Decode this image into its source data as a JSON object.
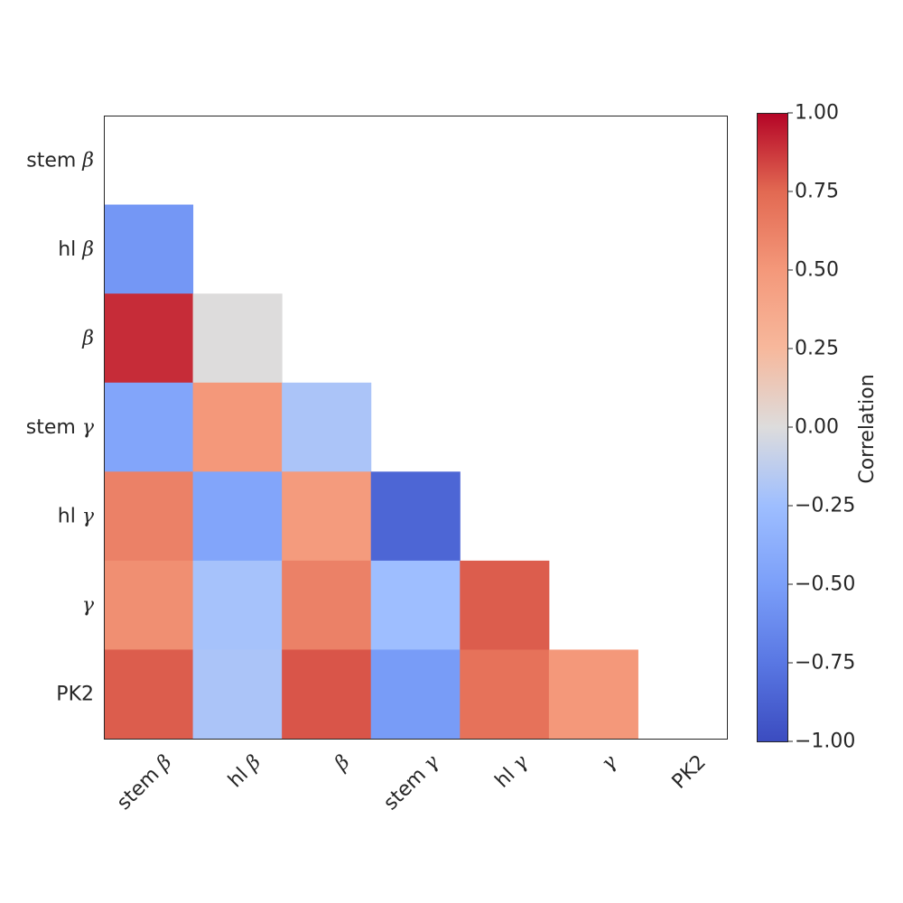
{
  "chart_data": {
    "type": "heatmap",
    "title": "",
    "xlabel": "",
    "ylabel": "",
    "labels": [
      {
        "text": "stem ",
        "sym": "β"
      },
      {
        "text": "hl ",
        "sym": "β"
      },
      {
        "text": "",
        "sym": "β"
      },
      {
        "text": "stem ",
        "sym": "γ"
      },
      {
        "text": "hl ",
        "sym": "γ"
      },
      {
        "text": "",
        "sym": "γ"
      },
      {
        "text": "PK2",
        "sym": ""
      }
    ],
    "mask": "upper-triangle-including-diagonal",
    "matrix": [
      [
        null,
        null,
        null,
        null,
        null,
        null,
        null
      ],
      [
        -0.55,
        null,
        null,
        null,
        null,
        null,
        null
      ],
      [
        0.9,
        0.0,
        null,
        null,
        null,
        null,
        null
      ],
      [
        -0.45,
        0.5,
        -0.2,
        null,
        null,
        null,
        null
      ],
      [
        0.62,
        -0.45,
        0.48,
        -0.85,
        null,
        null,
        null
      ],
      [
        0.55,
        -0.22,
        0.62,
        -0.25,
        0.78,
        null,
        null
      ],
      [
        0.78,
        -0.2,
        0.8,
        -0.52,
        0.7,
        0.5,
        null
      ]
    ],
    "colormap": "coolwarm",
    "vmin": -1.0,
    "vmax": 1.0,
    "colorbar": {
      "label": "Correlation",
      "ticks": [
        1.0,
        0.75,
        0.5,
        0.25,
        0.0,
        -0.25,
        -0.5,
        -0.75,
        -1.0
      ],
      "tick_labels": [
        "1.00",
        "0.75",
        "0.50",
        "0.25",
        "0.00",
        "−0.25",
        "−0.50",
        "−0.75",
        "−1.00"
      ],
      "placement": "right"
    },
    "grid": false
  }
}
